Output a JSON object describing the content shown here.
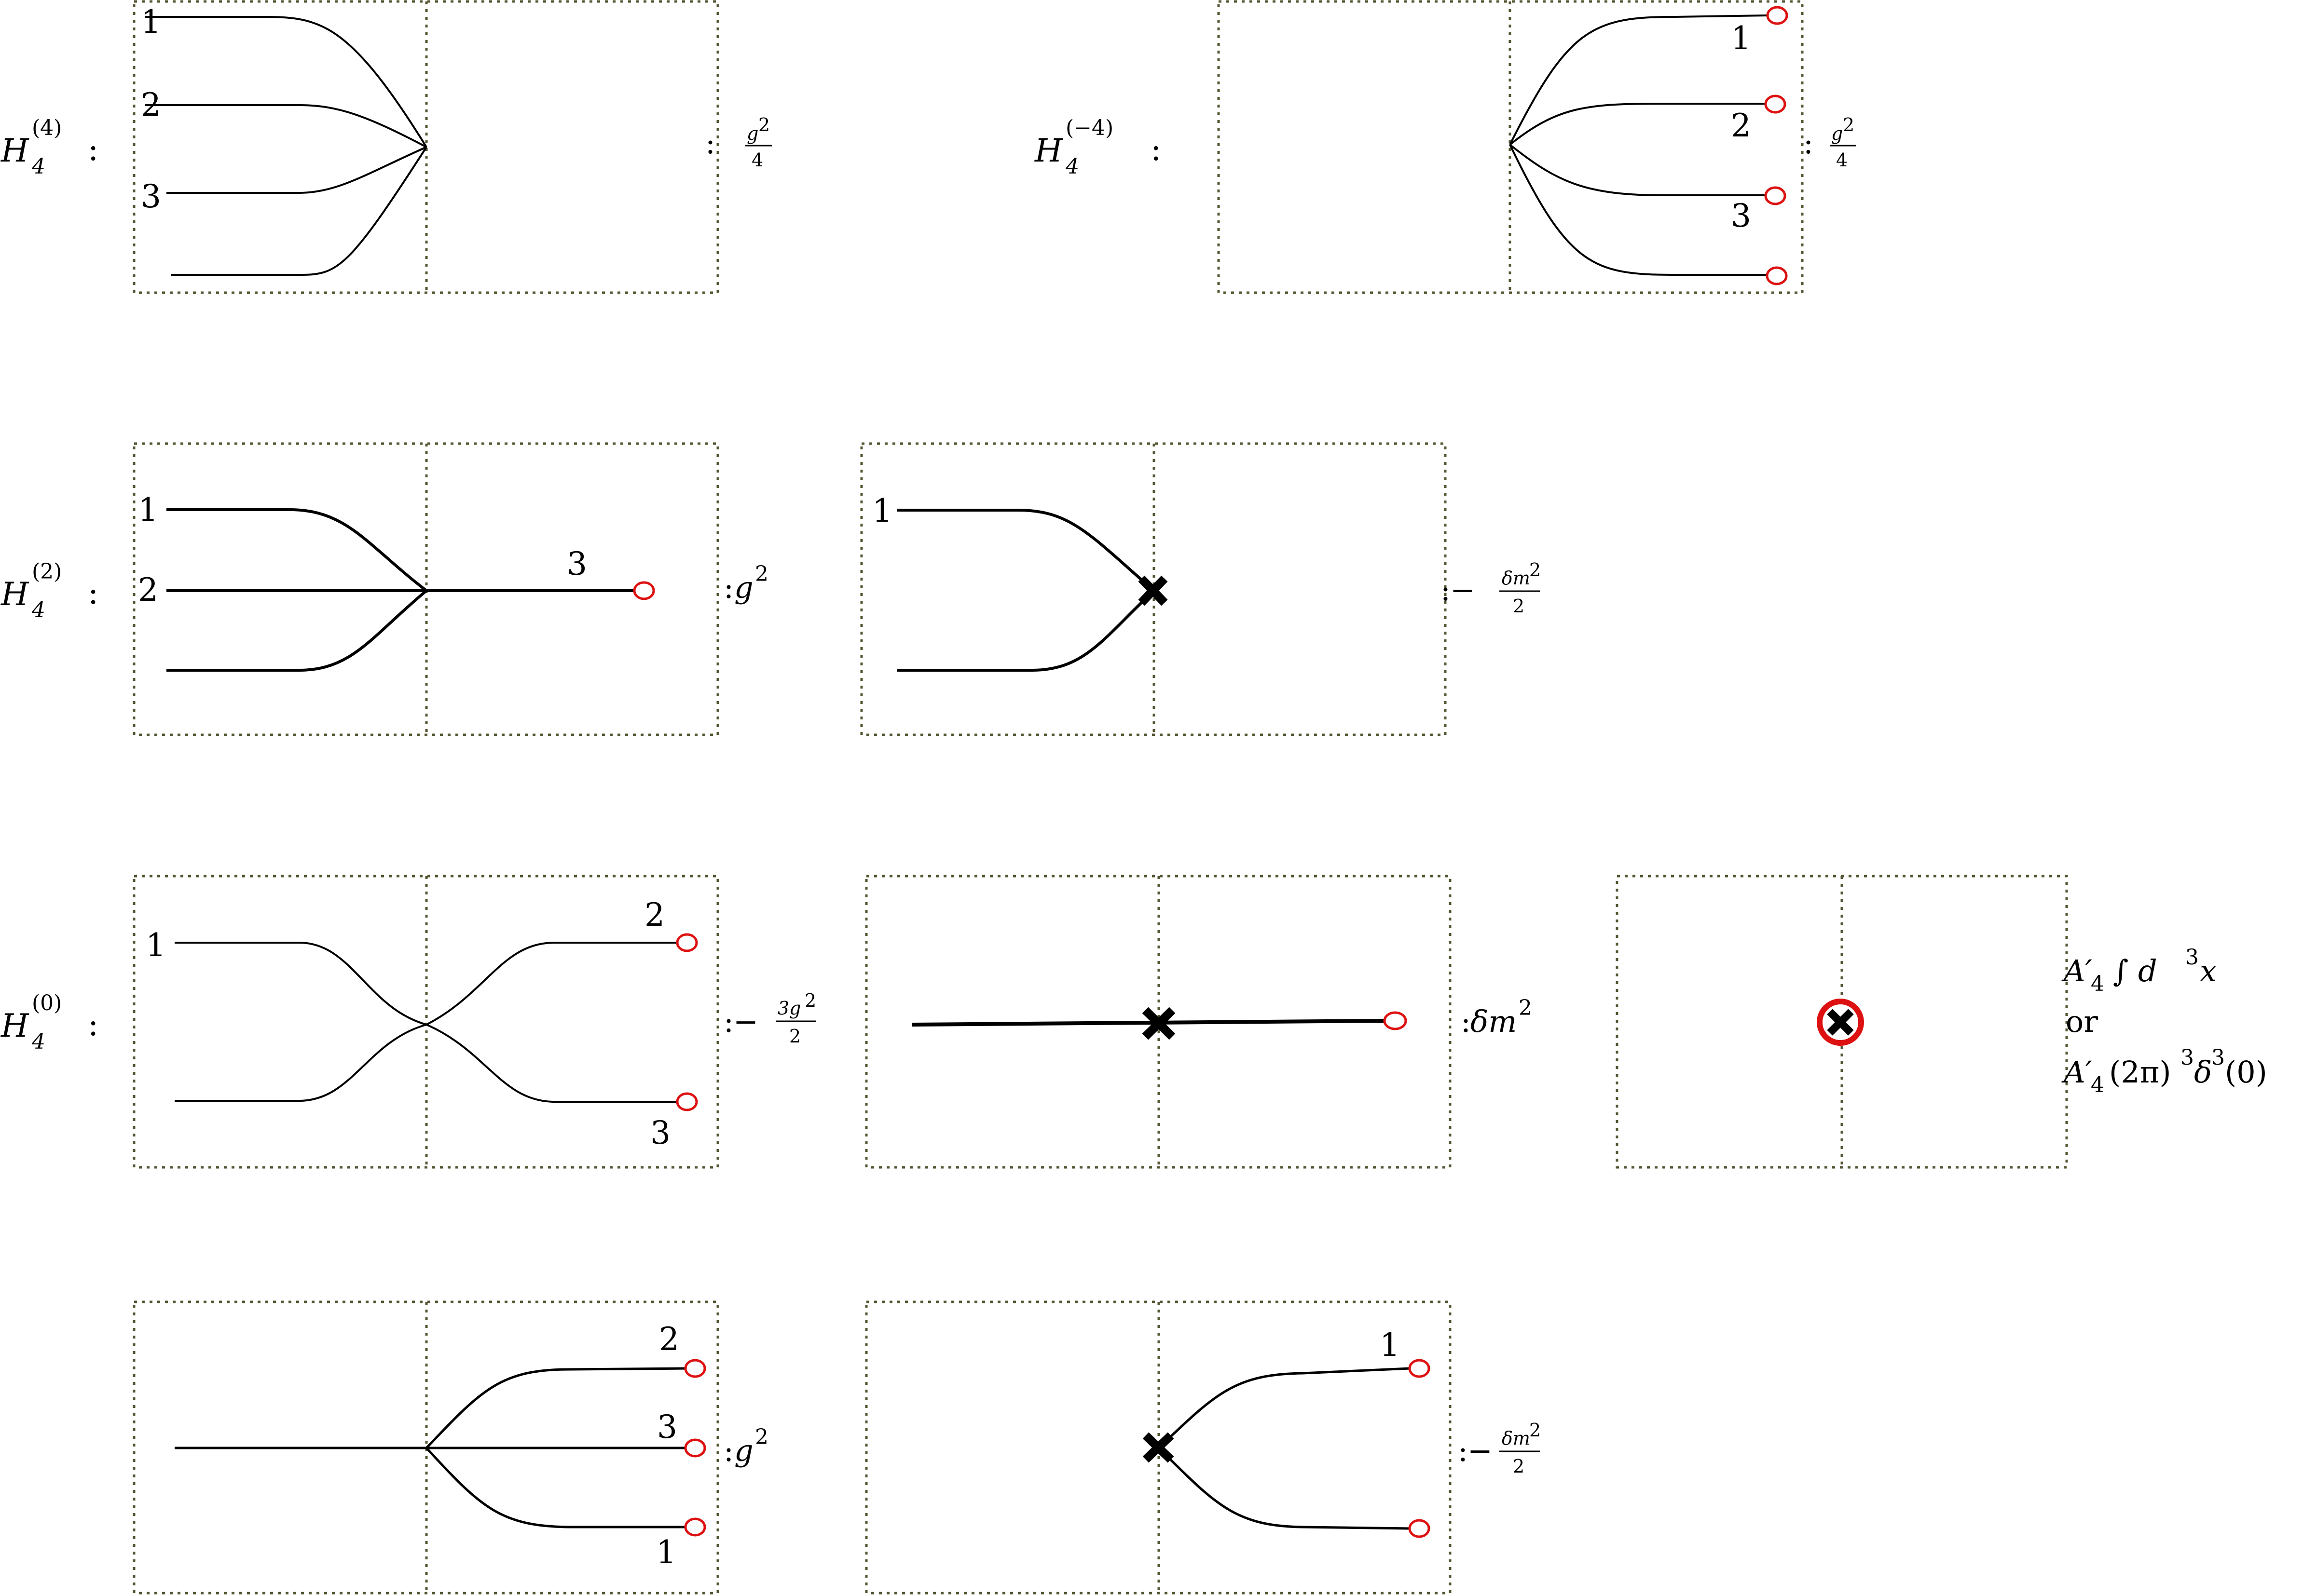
{
  "rows": {
    "h4_4": {
      "H": "H",
      "sub": "4",
      "sup": "(4)",
      "colon": ":"
    },
    "h4_m4": {
      "H": "H",
      "sub": "4",
      "sup": "(−4)",
      "colon": ":"
    },
    "h4_2": {
      "H": "H",
      "sub": "4",
      "sup": "(2)",
      "colon": ":"
    },
    "h4_0": {
      "H": "H",
      "sub": "4",
      "sup": "(0)",
      "colon": ":"
    }
  },
  "leg_labels": {
    "one": "1",
    "two": "2",
    "three": "3"
  },
  "coefficients": {
    "colon": ":",
    "g2_over_4_num": "g",
    "g2_over_4_sup": "2",
    "g2_over_4_den": "4",
    "g2": "g",
    "g2_sup": "2",
    "minus": "−",
    "dm2_num": "δm",
    "dm2_sup": "2",
    "dm2_den": "2",
    "three_g2_num": "3g",
    "three_g2_den": "2",
    "dm2_full": "δm",
    "A4_line1_a": "A′",
    "A4_sub": "4",
    "A4_line1_b": "∫ d",
    "A4_line1_c": "3",
    "A4_line1_d": "x",
    "or": "or",
    "A4_line3_b": "(2π)",
    "A4_line3_c": "3",
    "A4_line3_d": "δ",
    "A4_line3_e": "3",
    "A4_line3_f": "(0)"
  },
  "colors": {
    "frame": "#555533",
    "line": "#000000",
    "circle": "#dd1111"
  }
}
